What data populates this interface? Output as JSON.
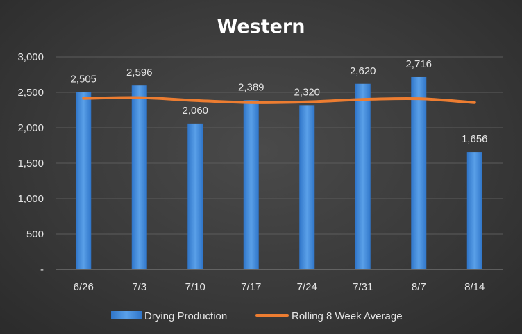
{
  "chart_data": {
    "type": "bar",
    "title": "Western",
    "categories": [
      "6/26",
      "7/3",
      "7/10",
      "7/17",
      "7/24",
      "7/31",
      "8/7",
      "8/14"
    ],
    "series": [
      {
        "name": "Drying Production",
        "type": "bar",
        "values": [
          2505,
          2596,
          2060,
          2389,
          2320,
          2620,
          2716,
          1656
        ],
        "data_labels": [
          "2,505",
          "2,596",
          "2,060",
          "2,389",
          "2,320",
          "2,620",
          "2,716",
          "1,656"
        ],
        "color": "#4a90d9"
      },
      {
        "name": "Rolling 8 Week Average",
        "type": "line",
        "values": [
          2415,
          2425,
          2385,
          2355,
          2365,
          2400,
          2410,
          2355
        ],
        "color": "#ed7d31"
      }
    ],
    "ylim": [
      0,
      3000
    ],
    "yticks": [
      0,
      500,
      1000,
      1500,
      2000,
      2500,
      3000
    ],
    "ytick_labels": [
      "-",
      "500",
      "1,000",
      "1,500",
      "2,000",
      "2,500",
      "3,000"
    ],
    "grid": true,
    "legend": "bottom"
  }
}
